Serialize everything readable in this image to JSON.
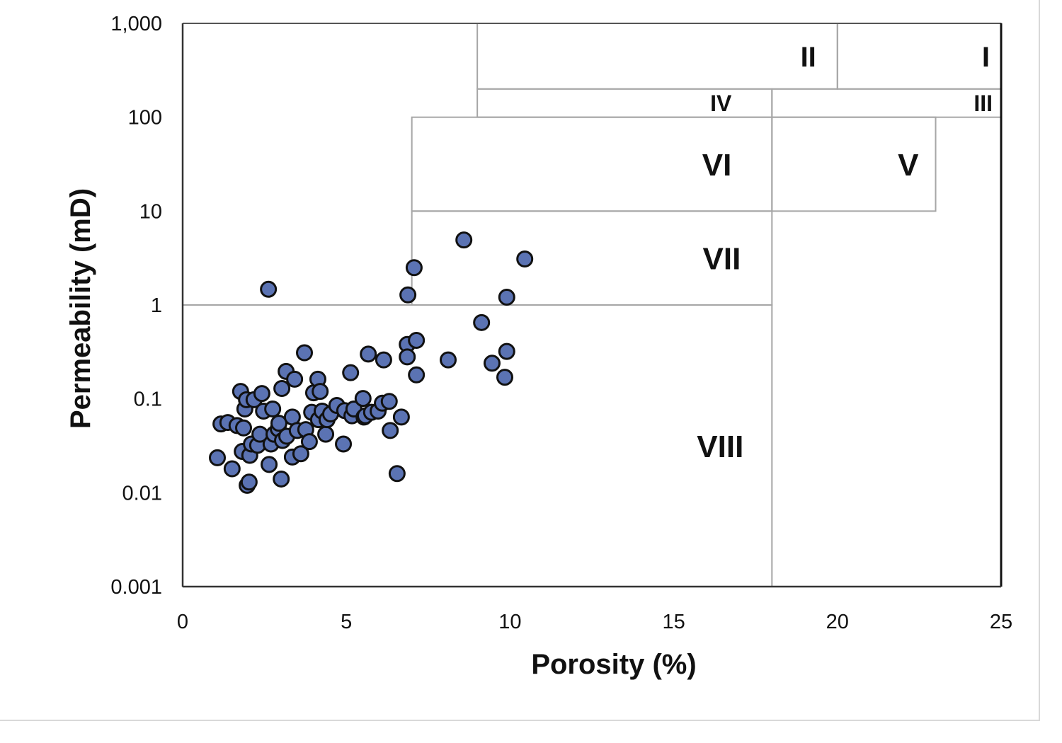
{
  "chart_data": {
    "type": "scatter",
    "title": "",
    "xlabel": "Porosity (%)",
    "ylabel": "Permeability (mD)",
    "xlim": [
      0,
      25
    ],
    "ylim": [
      0.001,
      1000
    ],
    "yscale": "log",
    "x_ticks": [
      0,
      5,
      10,
      15,
      20,
      25
    ],
    "x_tick_labels": [
      "0",
      "5",
      "10",
      "15",
      "20",
      "25"
    ],
    "y_ticks": [
      0.001,
      0.01,
      0.1,
      1,
      10,
      100,
      1000
    ],
    "y_tick_labels": [
      "0.001",
      "0.01",
      "0.1",
      "1",
      "10",
      "100",
      "1,000"
    ],
    "grid": false,
    "legend": "none",
    "marker_color": "#5b73b3",
    "marker_edge": "#111111",
    "regions": [
      {
        "label": "I",
        "x": [
          20,
          25
        ],
        "y": [
          200,
          1000
        ]
      },
      {
        "label": "II",
        "x": [
          9,
          20
        ],
        "y": [
          200,
          1000
        ]
      },
      {
        "label": "III",
        "x": [
          18,
          25
        ],
        "y": [
          100,
          200
        ]
      },
      {
        "label": "IV",
        "x": [
          9,
          18
        ],
        "y": [
          100,
          200
        ]
      },
      {
        "label": "V",
        "x": [
          18,
          23
        ],
        "y": [
          10,
          100
        ]
      },
      {
        "label": "VI",
        "x": [
          7,
          18
        ],
        "y": [
          10,
          100
        ]
      },
      {
        "label": "VII",
        "x": [
          7,
          18
        ],
        "y": [
          1,
          10
        ]
      },
      {
        "label": "VIII",
        "x": [
          0,
          18
        ],
        "y": [
          0.001,
          1
        ]
      }
    ],
    "points": [
      [
        1.06,
        0.0236
      ],
      [
        1.17,
        0.054
      ],
      [
        1.38,
        0.056
      ],
      [
        1.51,
        0.018
      ],
      [
        1.66,
        0.052
      ],
      [
        1.77,
        0.12
      ],
      [
        1.82,
        0.0275
      ],
      [
        1.86,
        0.049
      ],
      [
        1.9,
        0.078
      ],
      [
        1.95,
        0.098
      ],
      [
        1.97,
        0.012
      ],
      [
        2.03,
        0.013
      ],
      [
        2.05,
        0.025
      ],
      [
        2.1,
        0.033
      ],
      [
        2.18,
        0.098
      ],
      [
        2.29,
        0.032
      ],
      [
        2.36,
        0.042
      ],
      [
        2.42,
        0.114
      ],
      [
        2.47,
        0.074
      ],
      [
        2.62,
        1.47
      ],
      [
        2.64,
        0.02
      ],
      [
        2.7,
        0.033
      ],
      [
        2.75,
        0.078
      ],
      [
        2.79,
        0.042
      ],
      [
        2.92,
        0.048
      ],
      [
        2.94,
        0.055
      ],
      [
        3.01,
        0.014
      ],
      [
        3.03,
        0.129
      ],
      [
        3.05,
        0.036
      ],
      [
        3.16,
        0.196
      ],
      [
        3.18,
        0.04
      ],
      [
        3.35,
        0.024
      ],
      [
        3.35,
        0.064
      ],
      [
        3.42,
        0.162
      ],
      [
        3.5,
        0.046
      ],
      [
        3.61,
        0.026
      ],
      [
        3.72,
        0.31
      ],
      [
        3.76,
        0.047
      ],
      [
        3.87,
        0.035
      ],
      [
        3.94,
        0.072
      ],
      [
        4.0,
        0.116
      ],
      [
        4.13,
        0.162
      ],
      [
        4.15,
        0.06
      ],
      [
        4.2,
        0.12
      ],
      [
        4.26,
        0.074
      ],
      [
        4.37,
        0.042
      ],
      [
        4.41,
        0.06
      ],
      [
        4.52,
        0.069
      ],
      [
        4.71,
        0.085
      ],
      [
        4.91,
        0.033
      ],
      [
        4.95,
        0.075
      ],
      [
        5.13,
        0.19
      ],
      [
        5.17,
        0.066
      ],
      [
        5.23,
        0.078
      ],
      [
        5.51,
        0.101
      ],
      [
        5.54,
        0.064
      ],
      [
        5.58,
        0.066
      ],
      [
        5.67,
        0.3
      ],
      [
        5.77,
        0.072
      ],
      [
        5.97,
        0.074
      ],
      [
        6.1,
        0.09
      ],
      [
        6.14,
        0.26
      ],
      [
        6.31,
        0.094
      ],
      [
        6.34,
        0.046
      ],
      [
        6.55,
        0.016
      ],
      [
        6.68,
        0.064
      ],
      [
        6.86,
        0.38
      ],
      [
        6.86,
        0.28
      ],
      [
        6.88,
        1.28
      ],
      [
        7.07,
        2.5
      ],
      [
        7.14,
        0.42
      ],
      [
        7.14,
        0.18
      ],
      [
        8.11,
        0.26
      ],
      [
        8.59,
        4.93
      ],
      [
        9.13,
        0.65
      ],
      [
        9.45,
        0.24
      ],
      [
        9.84,
        0.17
      ],
      [
        9.9,
        0.32
      ],
      [
        9.9,
        1.21
      ],
      [
        10.45,
        3.09
      ]
    ]
  }
}
